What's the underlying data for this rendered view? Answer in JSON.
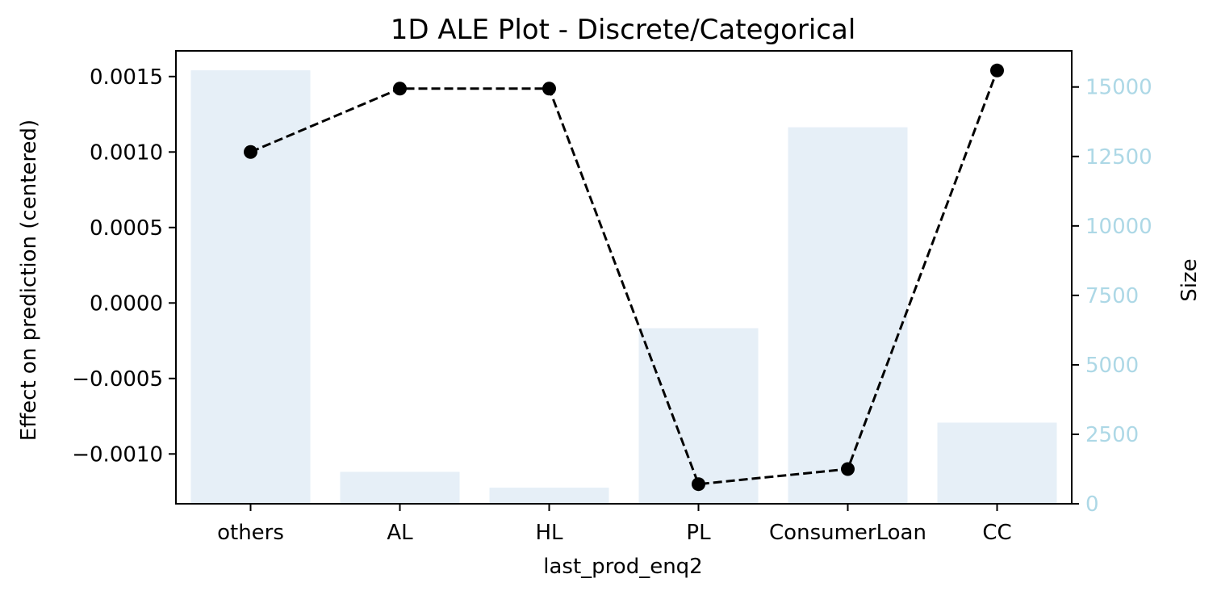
{
  "chart_data": {
    "type": "line",
    "title": "1D ALE Plot - Discrete/Categorical",
    "xlabel": "last_prod_enq2",
    "ylabel": "Effect on prediction (centered)",
    "y2label": "Size",
    "categories": [
      "others",
      "AL",
      "HL",
      "PL",
      "ConsumerLoan",
      "CC"
    ],
    "series": [
      {
        "values": [
          0.001,
          0.00142,
          0.00142,
          -0.0012,
          -0.0011,
          0.00154
        ],
        "style": "dashed-black-with-markers"
      }
    ],
    "bars": {
      "axis": "right",
      "values": [
        15600,
        1150,
        580,
        6320,
        13550,
        2920
      ]
    },
    "ylim": [
      -0.00133,
      0.00167
    ],
    "y2lim": [
      0,
      16300
    ],
    "yticks": [
      -0.001,
      -0.0005,
      0.0,
      0.0005,
      0.001,
      0.0015
    ],
    "ytick_labels": [
      "−0.0010",
      "−0.0005",
      "0.0000",
      "0.0005",
      "0.0010",
      "0.0015"
    ],
    "y2ticks": [
      0,
      2500,
      5000,
      7500,
      10000,
      12500,
      15000
    ],
    "y2tick_labels": [
      "0",
      "2500",
      "5000",
      "7500",
      "10000",
      "12500",
      "15000"
    ],
    "grid": false,
    "colors": {
      "bar": "#e6eff7",
      "line": "#000000",
      "right_axis": "#add8e6"
    }
  }
}
